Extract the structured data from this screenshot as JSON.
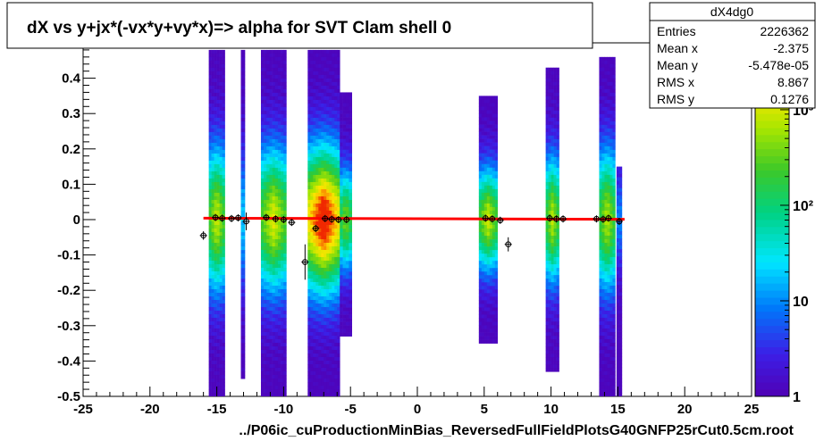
{
  "chart_data": {
    "type": "heatmap",
    "title": "dX vs  y+jx*(-vx*y+vy*x)=> alpha for SVT Clam shell 0",
    "xlabel": "../P06ic_cuProductionMinBias_ReversedFullFieldPlotsG40GNFP25rCut0.5cm.root",
    "ylabel": "",
    "xlim": [
      -25,
      25
    ],
    "ylim": [
      -0.5,
      0.5
    ],
    "x_ticks": [
      -25,
      -20,
      -15,
      -10,
      -5,
      0,
      5,
      10,
      15,
      20,
      25
    ],
    "y_ticks": [
      -0.5,
      -0.4,
      -0.3,
      -0.2,
      -0.1,
      0,
      0.1,
      0.2,
      0.3,
      0.4
    ],
    "x_tick_labels": [
      "-25",
      "-20",
      "-15",
      "-10",
      "-5",
      "0",
      "5",
      "10",
      "15",
      "20",
      "25"
    ],
    "y_tick_labels": [
      "-0.5",
      "-0.4",
      "-0.3",
      "-0.2",
      "-0.1",
      "0",
      "0.1",
      "0.2",
      "0.3",
      "0.4"
    ],
    "z_scale": "log",
    "z_ticks": [
      1,
      10,
      100,
      1000
    ],
    "z_tick_labels": [
      "1",
      "10",
      "10²",
      "10³"
    ],
    "bands": [
      {
        "x0": -15.6,
        "x1": -14.4,
        "y0": -0.5,
        "y1": 0.48,
        "peak": 2.7
      },
      {
        "x0": -13.2,
        "x1": -12.9,
        "y0": -0.45,
        "y1": 0.48,
        "peak": 1.0
      },
      {
        "x0": -11.7,
        "x1": -9.8,
        "y0": -0.5,
        "y1": 0.48,
        "peak": 2.8
      },
      {
        "x0": -8.2,
        "x1": -5.8,
        "y0": -0.5,
        "y1": 0.48,
        "peak": 3.8
      },
      {
        "x0": -5.8,
        "x1": -4.9,
        "y0": -0.33,
        "y1": 0.36,
        "peak": 2.4
      },
      {
        "x0": 4.6,
        "x1": 6.0,
        "y0": -0.35,
        "y1": 0.35,
        "peak": 2.7
      },
      {
        "x0": 9.6,
        "x1": 10.6,
        "y0": -0.43,
        "y1": 0.43,
        "peak": 2.6
      },
      {
        "x0": 13.6,
        "x1": 14.8,
        "y0": -0.5,
        "y1": 0.46,
        "peak": 2.6
      },
      {
        "x0": 14.9,
        "x1": 15.3,
        "y0": -0.5,
        "y1": 0.15,
        "peak": 0.8
      }
    ],
    "profile_points": [
      {
        "x": -16.0,
        "y": -0.045,
        "ey": 0.012
      },
      {
        "x": -15.1,
        "y": 0.006,
        "ey": 0.006
      },
      {
        "x": -14.6,
        "y": 0.004,
        "ey": 0.006
      },
      {
        "x": -13.9,
        "y": 0.003,
        "ey": 0.008
      },
      {
        "x": -13.4,
        "y": 0.005,
        "ey": 0.01
      },
      {
        "x": -12.8,
        "y": -0.005,
        "ey": 0.025
      },
      {
        "x": -11.3,
        "y": 0.006,
        "ey": 0.005
      },
      {
        "x": -10.6,
        "y": 0.002,
        "ey": 0.004
      },
      {
        "x": -10.0,
        "y": 0.0,
        "ey": 0.004
      },
      {
        "x": -9.4,
        "y": -0.008,
        "ey": 0.005
      },
      {
        "x": -8.4,
        "y": -0.12,
        "ey": 0.05
      },
      {
        "x": -7.6,
        "y": -0.025,
        "ey": 0.01
      },
      {
        "x": -6.9,
        "y": 0.003,
        "ey": 0.004
      },
      {
        "x": -6.4,
        "y": 0.001,
        "ey": 0.003
      },
      {
        "x": -5.9,
        "y": 0.0,
        "ey": 0.003
      },
      {
        "x": -5.3,
        "y": 0.0,
        "ey": 0.004
      },
      {
        "x": 5.1,
        "y": 0.004,
        "ey": 0.004
      },
      {
        "x": 5.6,
        "y": 0.002,
        "ey": 0.004
      },
      {
        "x": 6.2,
        "y": -0.002,
        "ey": 0.006
      },
      {
        "x": 6.8,
        "y": -0.07,
        "ey": 0.02
      },
      {
        "x": 9.9,
        "y": 0.004,
        "ey": 0.004
      },
      {
        "x": 10.4,
        "y": 0.002,
        "ey": 0.004
      },
      {
        "x": 10.9,
        "y": 0.002,
        "ey": 0.004
      },
      {
        "x": 13.4,
        "y": 0.002,
        "ey": 0.004
      },
      {
        "x": 13.9,
        "y": 0.001,
        "ey": 0.004
      },
      {
        "x": 14.3,
        "y": 0.004,
        "ey": 0.004
      },
      {
        "x": 15.1,
        "y": -0.005,
        "ey": 0.006
      }
    ],
    "fit_line": {
      "x0": -16.0,
      "x1": 15.5,
      "y0": 0.004,
      "y1": 0.001,
      "color": "#ff0000"
    },
    "stats": {
      "name": "dX4dg0",
      "rows": [
        {
          "label": "Entries",
          "value": "2226362"
        },
        {
          "label": "Mean x",
          "value": "-2.375"
        },
        {
          "label": "Mean y",
          "value": "-5.478e-05"
        },
        {
          "label": "RMS x",
          "value": "8.867"
        },
        {
          "label": "RMS y",
          "value": "0.1276"
        }
      ]
    }
  }
}
